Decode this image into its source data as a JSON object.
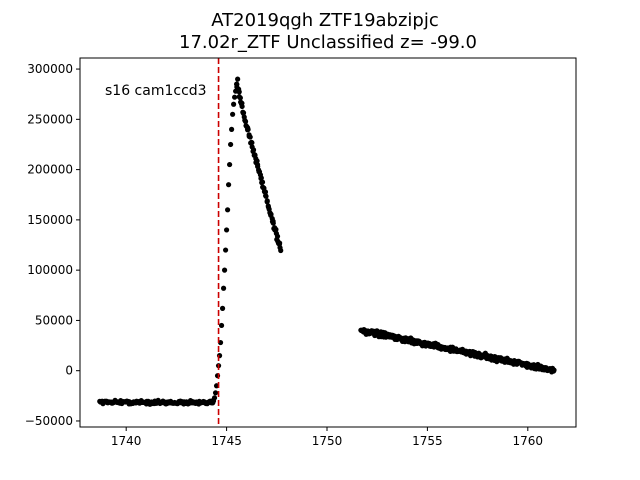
{
  "chart_data": {
    "type": "scatter",
    "title_line1": "AT2019qgh  ZTF19abzipjc",
    "title_line2": "17.02r_ZTF Unclassified z= -99.0",
    "annotation": "s16 cam1ccd3",
    "xlabel": "",
    "ylabel": "",
    "xlim": [
      1737.7,
      1762.4
    ],
    "ylim": [
      -56000,
      311000
    ],
    "x_ticks": [
      1740,
      1745,
      1750,
      1755,
      1760
    ],
    "y_ticks": [
      -50000,
      0,
      50000,
      100000,
      150000,
      200000,
      250000,
      300000
    ],
    "grid": false,
    "marker_color": "#000000",
    "vline": {
      "x": 1744.6,
      "color": "#cc0000",
      "style": "dashed"
    },
    "series": [
      {
        "segments": [
          {
            "shape": "flat",
            "x_start": 1738.7,
            "x_end": 1744.3,
            "y_start": -31000,
            "y_end": -32000,
            "scatter": 2500,
            "count": 150
          },
          {
            "shape": "rise",
            "points": [
              [
                1744.3,
                -32000
              ],
              [
                1744.35,
                -30000
              ],
              [
                1744.4,
                -27000
              ],
              [
                1744.45,
                -22000
              ],
              [
                1744.5,
                -15000
              ],
              [
                1744.55,
                -5000
              ],
              [
                1744.6,
                5000
              ],
              [
                1744.65,
                15000
              ],
              [
                1744.7,
                28000
              ],
              [
                1744.75,
                45000
              ],
              [
                1744.8,
                62000
              ],
              [
                1744.85,
                82000
              ],
              [
                1744.9,
                100000
              ],
              [
                1744.95,
                120000
              ],
              [
                1745.0,
                140000
              ],
              [
                1745.05,
                160000
              ],
              [
                1745.1,
                185000
              ],
              [
                1745.15,
                205000
              ],
              [
                1745.2,
                225000
              ],
              [
                1745.25,
                240000
              ],
              [
                1745.3,
                255000
              ],
              [
                1745.35,
                265000
              ],
              [
                1745.4,
                272000
              ],
              [
                1745.45,
                278000
              ],
              [
                1745.5,
                285000
              ],
              [
                1745.55,
                290000
              ],
              [
                1745.6,
                280000
              ]
            ]
          },
          {
            "shape": "decline",
            "x_start": 1745.5,
            "x_end": 1747.7,
            "y_start": 285000,
            "y_end": 120000,
            "scatter": 5000,
            "count": 80
          },
          {
            "shape": "tail",
            "x_start": 1751.7,
            "x_end": 1761.3,
            "y_start": 40000,
            "y_end": 0,
            "scatter": 3500,
            "count": 380
          }
        ]
      }
    ]
  }
}
